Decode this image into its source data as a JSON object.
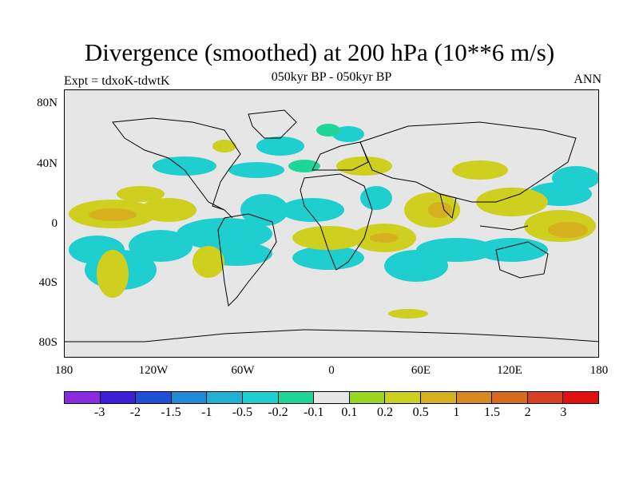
{
  "title": "Divergence (smoothed) at 200 hPa (10**6 m/s)",
  "subtitle_left": "Expt = tdxoK-tdwtK",
  "subtitle_center": "050kyr BP - 050kyr BP",
  "subtitle_right": "ANN",
  "y_ticks": [
    "80N",
    "40N",
    "0",
    "40S",
    "80S"
  ],
  "x_ticks": [
    "180",
    "120W",
    "60W",
    "0",
    "60E",
    "120E",
    "180"
  ],
  "colorbar": {
    "colors": [
      "#8a2be2",
      "#3a1fd6",
      "#1f4fd6",
      "#1f8ad6",
      "#1fb0d6",
      "#1fcfcf",
      "#1fd69a",
      "#e6e6e6",
      "#9ad61f",
      "#cfcf1f",
      "#d6b01f",
      "#d68a1f",
      "#d66a1f",
      "#d6401f",
      "#e01010"
    ],
    "labels": [
      "-3",
      "-2",
      "-1.5",
      "-1",
      "-0.5",
      "-0.2",
      "-0.1",
      "0.1",
      "0.2",
      "0.5",
      "1",
      "1.5",
      "2",
      "3"
    ]
  },
  "colors": {
    "background": "#e6e6e6",
    "negative": "#1fcfcf",
    "positive": "#cfcf1f",
    "strong_positive": "#d6b01f"
  }
}
